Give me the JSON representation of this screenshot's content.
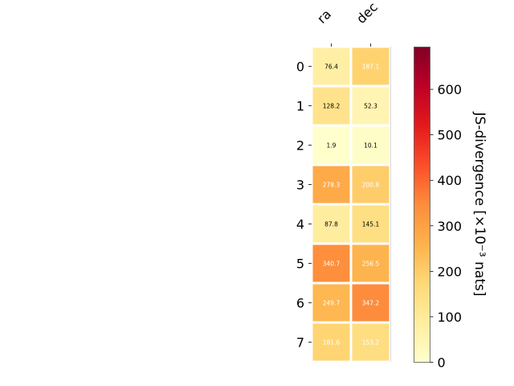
{
  "chart_data": {
    "type": "heatmap",
    "columns": [
      "ra",
      "dec"
    ],
    "rows": [
      "0",
      "1",
      "2",
      "3",
      "4",
      "5",
      "6",
      "7"
    ],
    "values": [
      [
        76.4,
        187.1
      ],
      [
        128.2,
        52.3
      ],
      [
        1.9,
        10.1
      ],
      [
        278.3,
        200.8
      ],
      [
        87.8,
        145.1
      ],
      [
        340.7,
        256.5
      ],
      [
        249.7,
        347.2
      ],
      [
        181.6,
        153.2
      ]
    ],
    "value_labels": [
      [
        "76.4",
        "187.1"
      ],
      [
        "128.2",
        "52.3"
      ],
      [
        "1.9",
        "10.1"
      ],
      [
        "278.3",
        "200.8"
      ],
      [
        "87.8",
        "145.1"
      ],
      [
        "340.7",
        "256.5"
      ],
      [
        "249.7",
        "347.2"
      ],
      [
        "181.6",
        "153.2"
      ]
    ],
    "colormap": "YlOrRd",
    "colorbar": {
      "label": "JS-divergence [×10⁻³ nats]",
      "range": [
        0,
        693
      ],
      "ticks": [
        0,
        100,
        200,
        300,
        400,
        500,
        600
      ],
      "tick_labels": [
        "0",
        "100",
        "200",
        "300",
        "400",
        "500",
        "600"
      ]
    },
    "label_color_threshold": 150,
    "colors": {
      "cell_border": "#ffffff",
      "text_dark": "#000000",
      "text_light": "#ffffff"
    }
  }
}
